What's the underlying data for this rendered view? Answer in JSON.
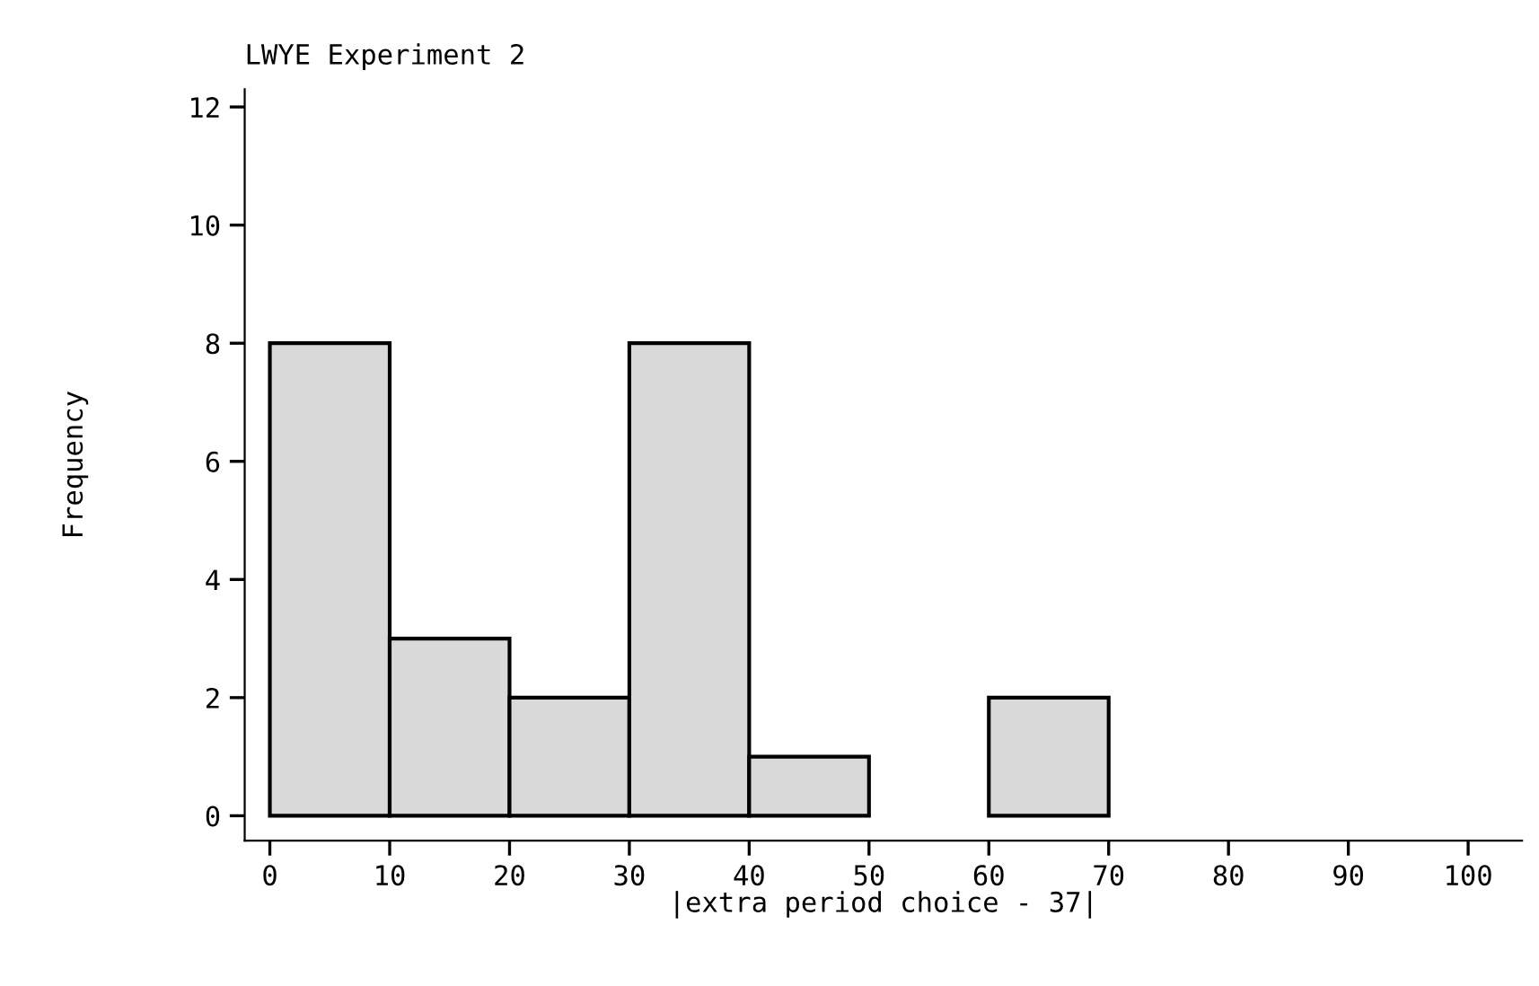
{
  "chart_data": {
    "type": "histogram",
    "title": "LWYE Experiment 2",
    "xlabel": "|extra period choice - 37|",
    "ylabel": "Frequency",
    "bins": [
      0,
      10,
      20,
      30,
      40,
      50,
      60,
      70
    ],
    "values": [
      8,
      3,
      2,
      8,
      1,
      0,
      2
    ],
    "color": "#d9d9d9",
    "xlim": [
      -2.1,
      104.5
    ],
    "ylim": [
      -0.42,
      12.3
    ],
    "xticks": [
      0,
      10,
      20,
      30,
      40,
      50,
      60,
      70,
      80,
      90,
      100
    ],
    "yticks": [
      0,
      2,
      4,
      6,
      8,
      10,
      12
    ],
    "grid": false
  }
}
